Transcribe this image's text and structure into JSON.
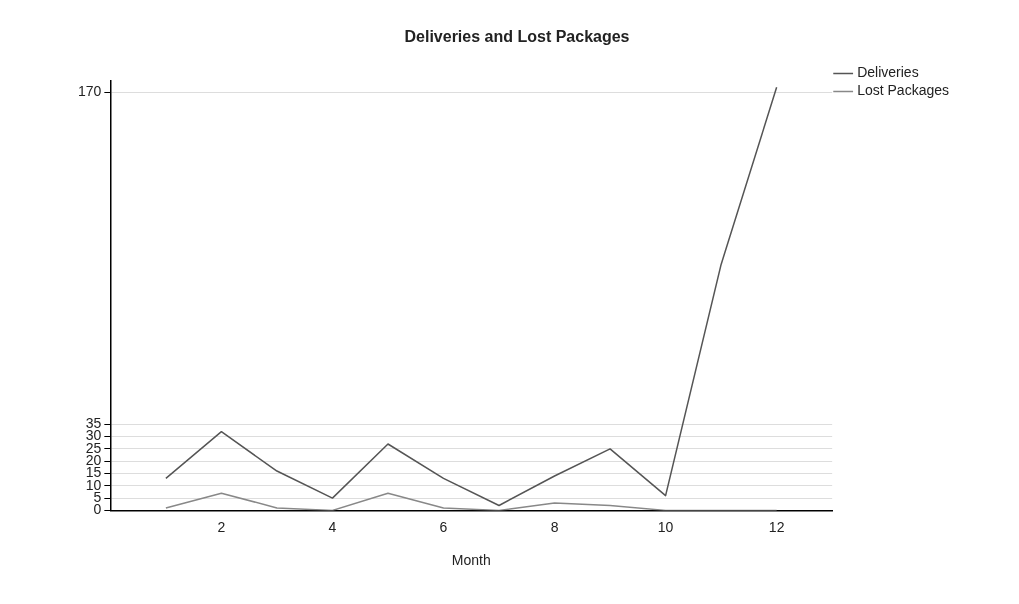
{
  "chart_data": {
    "type": "line",
    "title": "Deliveries and Lost Packages",
    "xlabel": "Month",
    "x": [
      1,
      2,
      3,
      4,
      5,
      6,
      7,
      8,
      9,
      10,
      11,
      12
    ],
    "series": [
      {
        "name": "Deliveries",
        "color": "#555555",
        "values": [
          13,
          32,
          16,
          5,
          27,
          13,
          2,
          14,
          25,
          6,
          100,
          172
        ]
      },
      {
        "name": "Lost Packages",
        "color": "#888888",
        "values": [
          1,
          7,
          1,
          0,
          7,
          1,
          0,
          3,
          2,
          0,
          0,
          0
        ]
      }
    ],
    "xlim": [
      0,
      13
    ],
    "xticks": [
      2,
      4,
      6,
      8,
      10,
      12
    ],
    "ylim": [
      0,
      174.5
    ],
    "yticks": [
      0,
      5,
      10,
      15,
      20,
      25,
      30,
      35,
      170
    ],
    "grid": "y",
    "legend": "top right",
    "marker": "none",
    "line_style": "solid"
  }
}
